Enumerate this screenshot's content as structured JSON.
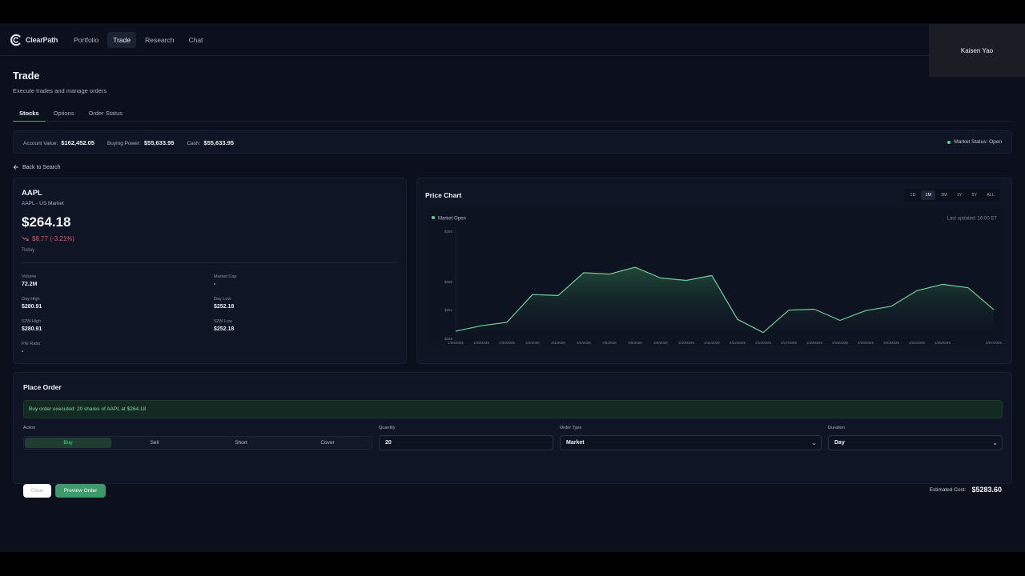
{
  "nav": {
    "brand": "ClearPath",
    "links": [
      "Portfolio",
      "Trade",
      "Research",
      "Chat"
    ],
    "active": "Trade",
    "user": "Kaisen Yao"
  },
  "page": {
    "title": "Trade",
    "subtitle": "Execute trades and manage orders",
    "tabs": [
      "Stocks",
      "Options",
      "Order Status"
    ],
    "active_tab": "Stocks"
  },
  "account": {
    "value_label": "Account Value:",
    "value": "$162,452.05",
    "buying_power_label": "Buying Power:",
    "buying_power": "$55,633.95",
    "cash_label": "Cash:",
    "cash": "$55,633.95",
    "market_status": "Market Status: Open"
  },
  "back_link": "Back to Search",
  "quote": {
    "symbol": "AAPL",
    "exchange": "AAPL - US Market",
    "price": "$264.18",
    "change": "$8.77 (-3.21%)",
    "period": "Today",
    "stats": [
      {
        "label": "Volume",
        "value": "72.2M"
      },
      {
        "label": "Market Cap",
        "value": "-"
      },
      {
        "label": "Day High",
        "value": "$280.91"
      },
      {
        "label": "Day Low",
        "value": "$252.18"
      },
      {
        "label": "52W High",
        "value": "$280.91"
      },
      {
        "label": "52W Low",
        "value": "$252.18"
      },
      {
        "label": "P/E Ratio",
        "value": "-"
      }
    ]
  },
  "chart": {
    "title": "Price Chart",
    "ranges": [
      "1D",
      "1M",
      "3M",
      "1Y",
      "5Y",
      "ALL"
    ],
    "active_range": "1M",
    "status": "Market Open",
    "updated": "Last updated: 16:00 ET",
    "colors": {
      "line": "#6fcf9a",
      "fill": "#1b3a2c"
    }
  },
  "chart_data": {
    "type": "area",
    "title": "Price Chart",
    "y_ticks": [
      "$280",
      "$268",
      "$261",
      "$258"
    ],
    "x": [
      "1/28/2026",
      "1/29/2026",
      "1/30/2026",
      "2/2/2026",
      "2/3/2026",
      "2/4/2026",
      "2/5/2026",
      "2/6/2026",
      "2/9/2026",
      "2/10/2026",
      "2/11/2026",
      "2/12/2026",
      "2/13/2026",
      "2/17/2026",
      "2/18/2026",
      "2/19/2026",
      "2/20/2026",
      "2/23/2026",
      "2/24/2026",
      "2/25/2026",
      "2/26/2026",
      "2/27/2026"
    ],
    "x_labels": [
      "1/28/2026",
      "1/29/2026",
      "1/30/2026",
      "2/2/2026",
      "2/3/2026",
      "2/4/2026",
      "2/5/2026",
      "2/6/2026",
      "2/9/2026",
      "2/10/2026",
      "2/11/2026",
      "2/12/2026",
      "2/13/2026",
      "2/17/2026",
      "2/18/2026",
      "2/19/2026",
      "2/20/2026",
      "2/23/2026",
      "2/24/2026",
      "2/25/2026",
      "",
      "2/27/2026"
    ],
    "values": [
      259.5,
      260.6,
      261.3,
      267.0,
      266.8,
      271.5,
      271.2,
      272.6,
      270.4,
      269.9,
      270.9,
      261.9,
      259.2,
      263.8,
      264.0,
      261.7,
      263.7,
      264.6,
      267.8,
      269.1,
      268.4,
      263.9
    ],
    "ylim": [
      258,
      280
    ]
  },
  "order": {
    "title": "Place Order",
    "alert": "Buy order executed: 20 shares of AAPL at $264.18",
    "action_label": "Action",
    "actions": [
      "Buy",
      "Sell",
      "Short",
      "Cover"
    ],
    "active_action": "Buy",
    "quantity_label": "Quantity",
    "quantity": "20",
    "order_type_label": "Order Type",
    "order_type": "Market",
    "duration_label": "Duration",
    "duration": "Day",
    "clear": "Clear",
    "preview": "Preview Order",
    "est_label": "Estimated Cost:",
    "est_value": "$5283.60"
  }
}
